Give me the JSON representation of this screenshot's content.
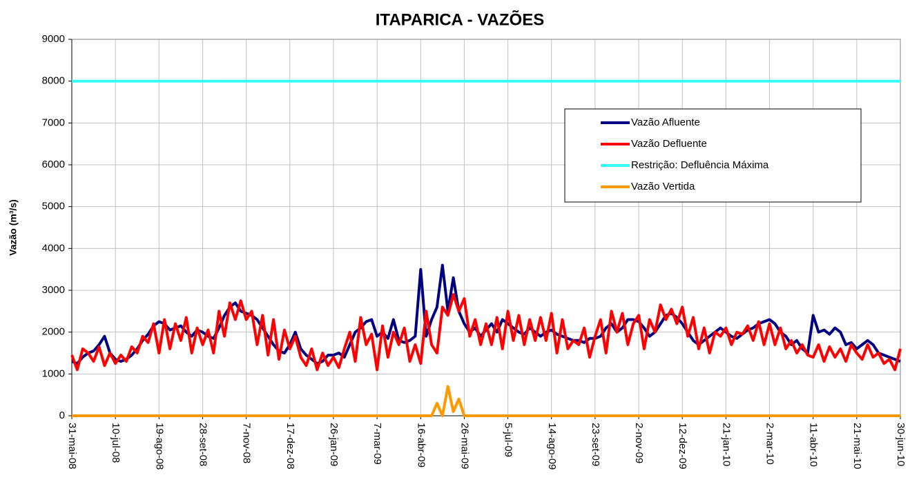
{
  "chart_data": {
    "type": "line",
    "title": "ITAPARICA - VAZÕES",
    "ylabel": "Vazão (m³/s)",
    "categories": [
      "31-mai-08",
      null,
      null,
      null,
      null,
      null,
      null,
      null,
      "10-jul-08",
      null,
      null,
      null,
      null,
      null,
      null,
      null,
      "19-ago-08",
      null,
      null,
      null,
      null,
      null,
      null,
      null,
      "28-set-08",
      null,
      null,
      null,
      null,
      null,
      null,
      null,
      "7-nov-08",
      null,
      null,
      null,
      null,
      null,
      null,
      null,
      "17-dez-08",
      null,
      null,
      null,
      null,
      null,
      null,
      null,
      "26-jan-09",
      null,
      null,
      null,
      null,
      null,
      null,
      null,
      "7-mar-09",
      null,
      null,
      null,
      null,
      null,
      null,
      null,
      "16-abr-09",
      null,
      null,
      null,
      null,
      null,
      null,
      null,
      "26-mai-09",
      null,
      null,
      null,
      null,
      null,
      null,
      null,
      "5-jul-09",
      null,
      null,
      null,
      null,
      null,
      null,
      null,
      "14-ago-09",
      null,
      null,
      null,
      null,
      null,
      null,
      null,
      "23-set-09",
      null,
      null,
      null,
      null,
      null,
      null,
      null,
      "2-nov-09",
      null,
      null,
      null,
      null,
      null,
      null,
      null,
      "12-dez-09",
      null,
      null,
      null,
      null,
      null,
      null,
      null,
      "21-jan-10",
      null,
      null,
      null,
      null,
      null,
      null,
      null,
      "2-mar-10",
      null,
      null,
      null,
      null,
      null,
      null,
      null,
      "11-abr-10",
      null,
      null,
      null,
      null,
      null,
      null,
      null,
      "21-mai-10",
      null,
      null,
      null,
      null,
      null,
      null,
      null,
      "30-jun-10"
    ],
    "series": [
      {
        "name": "Vazão Afluente",
        "color": "#000080",
        "values": [
          1300,
          1250,
          1400,
          1500,
          1550,
          1700,
          1900,
          1500,
          1350,
          1300,
          1350,
          1450,
          1600,
          1800,
          1950,
          2150,
          2250,
          2200,
          2050,
          2100,
          2150,
          2000,
          1900,
          2050,
          2000,
          1900,
          1850,
          2100,
          2400,
          2600,
          2700,
          2500,
          2450,
          2400,
          2300,
          2100,
          1900,
          1700,
          1550,
          1500,
          1700,
          2000,
          1600,
          1450,
          1350,
          1250,
          1300,
          1450,
          1450,
          1500,
          1400,
          1700,
          2000,
          2100,
          2250,
          2300,
          1900,
          2000,
          1850,
          2300,
          1800,
          1750,
          1800,
          1900,
          3500,
          1900,
          2300,
          2600,
          3600,
          2500,
          3300,
          2500,
          2200,
          2000,
          2100,
          1900,
          2050,
          2200,
          2000,
          2300,
          2200,
          2100,
          2000,
          1950,
          2100,
          2000,
          1900,
          2000,
          2050,
          1950,
          1900,
          1850,
          1800,
          1800,
          1750,
          1850,
          1850,
          1900,
          2100,
          2200,
          2000,
          2100,
          2300,
          2300,
          2250,
          2100,
          1900,
          2000,
          2200,
          2400,
          2450,
          2350,
          2200,
          2000,
          1800,
          1700,
          1800,
          1900,
          2000,
          2100,
          2000,
          1900,
          1850,
          1950,
          2050,
          2100,
          2200,
          2250,
          2300,
          2200,
          2000,
          1900,
          1700,
          1800,
          1600,
          1500,
          2400,
          2000,
          2050,
          1950,
          2100,
          2000,
          1700,
          1750,
          1600,
          1700,
          1800,
          1700,
          1500,
          1450,
          1400,
          1350,
          1300
        ]
      },
      {
        "name": "Vazão Defluente",
        "color": "#ff0000",
        "values": [
          1450,
          1100,
          1600,
          1500,
          1300,
          1650,
          1200,
          1500,
          1250,
          1450,
          1300,
          1650,
          1500,
          1900,
          1750,
          2200,
          1500,
          2300,
          1600,
          2200,
          1800,
          2350,
          1500,
          2100,
          1700,
          2050,
          1500,
          2500,
          1900,
          2700,
          2300,
          2750,
          2300,
          2500,
          1700,
          2400,
          1450,
          2300,
          1350,
          2050,
          1600,
          1900,
          1400,
          1200,
          1600,
          1100,
          1500,
          1200,
          1400,
          1150,
          1600,
          2000,
          1300,
          2350,
          1700,
          1950,
          1100,
          2150,
          1400,
          2000,
          1700,
          2100,
          1300,
          1700,
          1250,
          2500,
          1700,
          1500,
          2600,
          2400,
          2900,
          2500,
          2800,
          1900,
          2300,
          1700,
          2200,
          1700,
          2350,
          1600,
          2500,
          1800,
          2400,
          1700,
          2300,
          1800,
          2350,
          1800,
          2450,
          1500,
          2300,
          1600,
          1800,
          1700,
          2100,
          1400,
          1900,
          2300,
          1500,
          2500,
          2000,
          2450,
          1700,
          2200,
          2400,
          1600,
          2300,
          2000,
          2650,
          2300,
          2550,
          2200,
          2600,
          1900,
          2350,
          1600,
          2100,
          1500,
          2000,
          1900,
          2100,
          1700,
          2000,
          1950,
          2150,
          1800,
          2250,
          1700,
          2200,
          1700,
          2100,
          1600,
          1800,
          1500,
          1700,
          1450,
          1400,
          1700,
          1300,
          1650,
          1400,
          1600,
          1300,
          1700,
          1500,
          1350,
          1700,
          1400,
          1500,
          1250,
          1350,
          1100,
          1600
        ]
      },
      {
        "name": "Restrição: Defluência Máxima",
        "color": "#33ffff",
        "values": [
          8000,
          8000,
          8000,
          8000,
          8000,
          8000,
          8000,
          8000,
          8000,
          8000,
          8000,
          8000,
          8000,
          8000,
          8000,
          8000,
          8000,
          8000,
          8000,
          8000,
          8000,
          8000,
          8000,
          8000,
          8000,
          8000,
          8000,
          8000,
          8000,
          8000,
          8000,
          8000,
          8000,
          8000,
          8000,
          8000,
          8000,
          8000,
          8000,
          8000,
          8000,
          8000,
          8000,
          8000,
          8000,
          8000,
          8000,
          8000,
          8000,
          8000,
          8000,
          8000,
          8000,
          8000,
          8000,
          8000,
          8000,
          8000,
          8000,
          8000,
          8000,
          8000,
          8000,
          8000,
          8000,
          8000,
          8000,
          8000,
          8000,
          8000,
          8000,
          8000,
          8000,
          8000,
          8000,
          8000,
          8000,
          8000,
          8000,
          8000,
          8000,
          8000,
          8000,
          8000,
          8000,
          8000,
          8000,
          8000,
          8000,
          8000,
          8000,
          8000,
          8000,
          8000,
          8000,
          8000,
          8000,
          8000,
          8000,
          8000,
          8000,
          8000,
          8000,
          8000,
          8000,
          8000,
          8000,
          8000,
          8000,
          8000,
          8000,
          8000,
          8000,
          8000,
          8000,
          8000,
          8000,
          8000,
          8000,
          8000,
          8000,
          8000,
          8000,
          8000,
          8000,
          8000,
          8000,
          8000,
          8000,
          8000,
          8000,
          8000,
          8000,
          8000,
          8000,
          8000,
          8000,
          8000,
          8000,
          8000,
          8000,
          8000,
          8000,
          8000,
          8000,
          8000,
          8000,
          8000,
          8000,
          8000,
          8000,
          8000,
          8000
        ]
      },
      {
        "name": "Vazão Vertida",
        "color": "#ff9900",
        "values": [
          0,
          0,
          0,
          0,
          0,
          0,
          0,
          0,
          0,
          0,
          0,
          0,
          0,
          0,
          0,
          0,
          0,
          0,
          0,
          0,
          0,
          0,
          0,
          0,
          0,
          0,
          0,
          0,
          0,
          0,
          0,
          0,
          0,
          0,
          0,
          0,
          0,
          0,
          0,
          0,
          0,
          0,
          0,
          0,
          0,
          0,
          0,
          0,
          0,
          0,
          0,
          0,
          0,
          0,
          0,
          0,
          0,
          0,
          0,
          0,
          0,
          0,
          0,
          0,
          0,
          0,
          0,
          300,
          0,
          700,
          100,
          400,
          0,
          0,
          0,
          0,
          0,
          0,
          0,
          0,
          0,
          0,
          0,
          0,
          0,
          0,
          0,
          0,
          0,
          0,
          0,
          0,
          0,
          0,
          0,
          0,
          0,
          0,
          0,
          0,
          0,
          0,
          0,
          0,
          0,
          0,
          0,
          0,
          0,
          0,
          0,
          0,
          0,
          0,
          0,
          0,
          0,
          0,
          0,
          0,
          0,
          0,
          0,
          0,
          0,
          0,
          0,
          0,
          0,
          0,
          0,
          0,
          0,
          0,
          0,
          0,
          0,
          0,
          0,
          0,
          0,
          0,
          0,
          0,
          0,
          0,
          0,
          0,
          0,
          0,
          0,
          0,
          0
        ]
      }
    ],
    "ylim": [
      0,
      9000
    ],
    "yticks": [
      0,
      1000,
      2000,
      3000,
      4000,
      5000,
      6000,
      7000,
      8000,
      9000
    ],
    "grid": true,
    "legend": "upper right"
  }
}
